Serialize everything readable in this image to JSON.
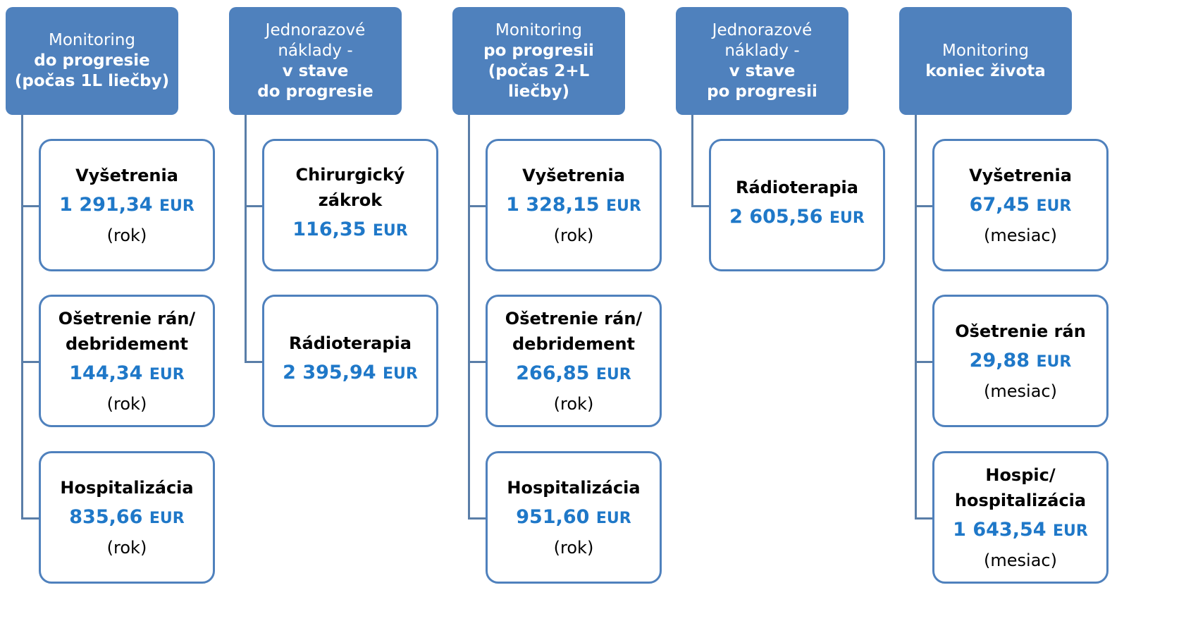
{
  "columns": [
    {
      "header": {
        "normal": [
          "Monitoring"
        ],
        "bold": [
          "do progresie",
          "(počas 1L liečby)"
        ]
      },
      "items": [
        {
          "label": [
            "Vyšetrenia"
          ],
          "amount": "1 291,34",
          "unit": "EUR",
          "period": "(rok)"
        },
        {
          "label": [
            "Ošetrenie rán/",
            "debridement"
          ],
          "amount": "144,34",
          "unit": "EUR",
          "period": "(rok)"
        },
        {
          "label": [
            "Hospitalizácia"
          ],
          "amount": "835,66",
          "unit": "EUR",
          "period": "(rok)"
        }
      ]
    },
    {
      "header": {
        "normal": [
          "Jednorazové",
          "náklady  -"
        ],
        "bold": [
          "v stave",
          "do progresie"
        ]
      },
      "items": [
        {
          "label": [
            "Chirurgický",
            "zákrok"
          ],
          "amount": "116,35",
          "unit": "EUR"
        },
        {
          "label": [
            "Rádioterapia"
          ],
          "amount": "2 395,94",
          "unit": "EUR"
        }
      ]
    },
    {
      "header": {
        "normal": [
          "Monitoring"
        ],
        "bold": [
          "po progresii",
          "(počas 2+L",
          "liečby)"
        ]
      },
      "items": [
        {
          "label": [
            "Vyšetrenia"
          ],
          "amount": "1 328,15",
          "unit": "EUR",
          "period": "(rok)"
        },
        {
          "label": [
            "Ošetrenie rán/",
            "debridement"
          ],
          "amount": "266,85",
          "unit": "EUR",
          "period": "(rok)"
        },
        {
          "label": [
            "Hospitalizácia"
          ],
          "amount": "951,60",
          "unit": "EUR",
          "period": "(rok)"
        }
      ]
    },
    {
      "header": {
        "normal": [
          "Jednorazové",
          "náklady  -"
        ],
        "bold": [
          "v stave",
          "po progresii"
        ]
      },
      "items": [
        {
          "label": [
            "Rádioterapia"
          ],
          "amount": "2 605,56",
          "unit": "EUR"
        }
      ]
    },
    {
      "header": {
        "normal": [
          "Monitoring"
        ],
        "bold": [
          "koniec života"
        ]
      },
      "items": [
        {
          "label": [
            "Vyšetrenia"
          ],
          "amount": "67,45",
          "unit": "EUR",
          "period": "(mesiac)"
        },
        {
          "label": [
            "Ošetrenie rán"
          ],
          "amount": "29,88",
          "unit": "EUR",
          "period": "(mesiac)"
        },
        {
          "label": [
            "Hospic/",
            "hospitalizácia"
          ],
          "amount": "1 643,54",
          "unit": "EUR",
          "period": "(mesiac)"
        }
      ]
    }
  ]
}
